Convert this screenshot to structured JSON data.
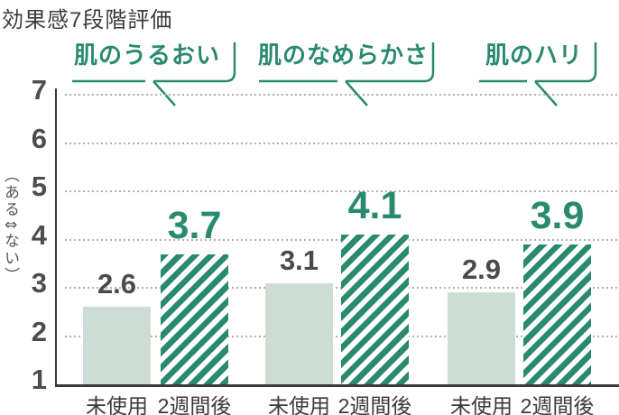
{
  "title": "効果感7段階評価",
  "y_axis": {
    "label": "（ある⇕ない）",
    "ticks": [
      "7",
      "6",
      "5",
      "4",
      "3",
      "2",
      "1"
    ]
  },
  "colors": {
    "green": "#2a8a6e",
    "light_bar": "#cdddd5",
    "dark_text": "#3a3a3a",
    "gray_value": "#4a4a4a",
    "tick_text": "#4d4d4d",
    "grid_dot": "#b0b0b0"
  },
  "chart_data": {
    "type": "bar",
    "title": "効果感7段階評価",
    "ylabel": "（ある⇕ない）",
    "ylim": [
      1,
      7
    ],
    "yticks": [
      1,
      2,
      3,
      4,
      5,
      6,
      7
    ],
    "grid": "dotted horizontal lines at levels 2-7",
    "categories": [
      "未使用",
      "2週間後"
    ],
    "series_styles": [
      "solid light green",
      "green diagonal stripes"
    ],
    "groups": [
      {
        "label": "肌のうるおい",
        "values": [
          2.6,
          3.7
        ]
      },
      {
        "label": "肌のなめらかさ",
        "values": [
          3.1,
          4.1
        ]
      },
      {
        "label": "肌のハリ",
        "values": [
          2.9,
          3.9
        ]
      }
    ]
  }
}
